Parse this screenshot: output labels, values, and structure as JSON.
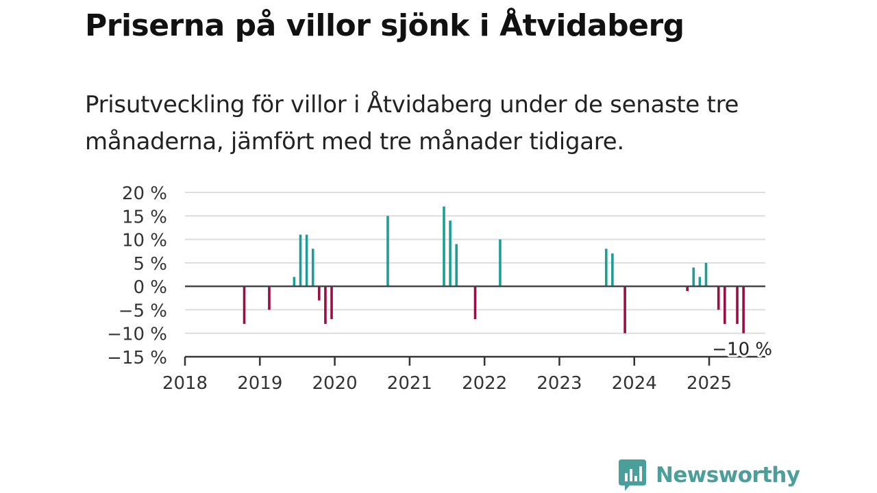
{
  "header": {
    "title": "Priserna på villor sjönk i Åtvidaberg",
    "subtitle": "Prisutveckling för villor i Åtvidaberg under de senaste tre månaderna, jämfört med tre månader tidigare."
  },
  "brand": {
    "name": "Newsworthy",
    "color": "#4a9f9a",
    "icon": "bar-chart-speech-bubble-icon"
  },
  "colors": {
    "positive": "#1a9e96",
    "negative": "#9b0e45",
    "grid": "#dddddd",
    "zero_line": "#444444"
  },
  "chart_data": {
    "type": "bar",
    "title": "",
    "xlabel": "",
    "ylabel": "",
    "ylim": [
      -15,
      20
    ],
    "y_ticks": [
      {
        "value": 20,
        "label": "20 %"
      },
      {
        "value": 15,
        "label": "15 %"
      },
      {
        "value": 10,
        "label": "10 %"
      },
      {
        "value": 5,
        "label": "5 %"
      },
      {
        "value": 0,
        "label": "0 %"
      },
      {
        "value": -5,
        "label": "−5 %"
      },
      {
        "value": -10,
        "label": "−10 %"
      },
      {
        "value": -15,
        "label": "−15 %"
      }
    ],
    "x_domain": [
      "2018-01",
      "2025-10"
    ],
    "x_ticks": [
      {
        "value": "2018-01",
        "label": "2018"
      },
      {
        "value": "2019-01",
        "label": "2019"
      },
      {
        "value": "2020-01",
        "label": "2020"
      },
      {
        "value": "2021-01",
        "label": "2021"
      },
      {
        "value": "2022-01",
        "label": "2022"
      },
      {
        "value": "2023-01",
        "label": "2023"
      },
      {
        "value": "2024-01",
        "label": "2024"
      },
      {
        "value": "2025-01",
        "label": "2025"
      }
    ],
    "grid": true,
    "series": [
      {
        "points": [
          {
            "x": "2018-10",
            "y": -8
          },
          {
            "x": "2019-02",
            "y": -5
          },
          {
            "x": "2019-06",
            "y": 2
          },
          {
            "x": "2019-07",
            "y": 11
          },
          {
            "x": "2019-08",
            "y": 11
          },
          {
            "x": "2019-09",
            "y": 8
          },
          {
            "x": "2019-10",
            "y": -3
          },
          {
            "x": "2019-11",
            "y": -8
          },
          {
            "x": "2019-12",
            "y": -7
          },
          {
            "x": "2020-09",
            "y": 15
          },
          {
            "x": "2021-06",
            "y": 17
          },
          {
            "x": "2021-07",
            "y": 14
          },
          {
            "x": "2021-08",
            "y": 9
          },
          {
            "x": "2021-11",
            "y": -7
          },
          {
            "x": "2022-03",
            "y": 10
          },
          {
            "x": "2023-08",
            "y": 8
          },
          {
            "x": "2023-09",
            "y": 7
          },
          {
            "x": "2023-11",
            "y": -10
          },
          {
            "x": "2024-09",
            "y": -1
          },
          {
            "x": "2024-10",
            "y": 4
          },
          {
            "x": "2024-11",
            "y": 2
          },
          {
            "x": "2024-12",
            "y": 5
          },
          {
            "x": "2025-02",
            "y": -5
          },
          {
            "x": "2025-03",
            "y": -8
          },
          {
            "x": "2025-05",
            "y": -8
          },
          {
            "x": "2025-06",
            "y": -10
          }
        ]
      }
    ],
    "annotations": [
      {
        "x": "2025-06",
        "y": -10,
        "text": "−10 %"
      }
    ]
  }
}
